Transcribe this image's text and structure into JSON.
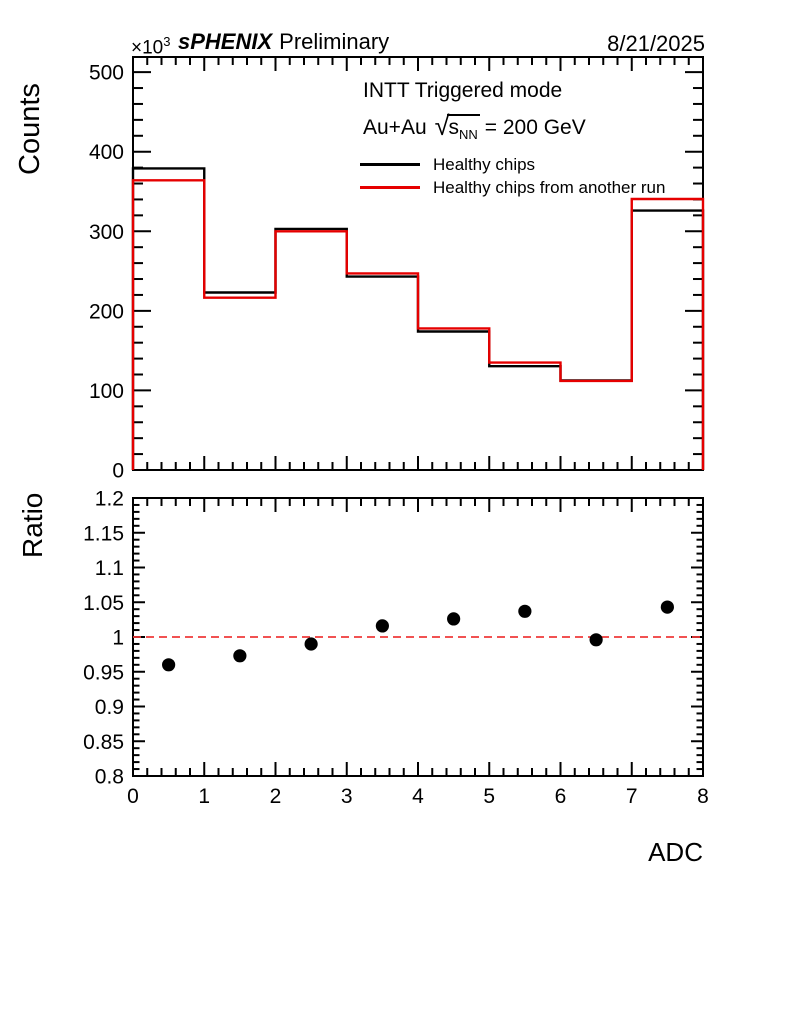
{
  "header": {
    "power_prefix": "×10",
    "power_exponent": "3",
    "experiment": "sPHENIX",
    "status": "Preliminary",
    "date": "8/21/2025"
  },
  "top_panel": {
    "legend": {
      "mode": "INTT Triggered mode",
      "collision": "Au+Au",
      "sqrt_symbol": "√",
      "s_symbol": "s",
      "s_subscript": "NN",
      "energy": "= 200 GeV",
      "entries": [
        {
          "label": "Healthy chips",
          "color": "#000000"
        },
        {
          "label": "Healthy chips from another run",
          "color": "#e60000"
        }
      ]
    }
  },
  "chart_data": [
    {
      "type": "line",
      "style": "step-histogram",
      "title": "",
      "xlabel": "ADC",
      "ylabel": "Counts",
      "units_factor": "×10³",
      "xlim": [
        0,
        8
      ],
      "ylim": [
        0,
        519
      ],
      "grid": false,
      "legend_position": "top-right-inside",
      "bin_edges": [
        0,
        1,
        2,
        3,
        4,
        5,
        6,
        7,
        8
      ],
      "y_ticks": [
        0,
        100,
        200,
        300,
        400,
        500
      ],
      "y_tick_labels": [
        "0",
        "100",
        "200",
        "300",
        "400",
        "500"
      ],
      "series": [
        {
          "name": "Healthy chips",
          "color": "#000000",
          "values": [
            379,
            223,
            303,
            243,
            174,
            130.5,
            112.5,
            326
          ]
        },
        {
          "name": "Healthy chips from another run",
          "color": "#e60000",
          "values": [
            364,
            216.5,
            300,
            247,
            178,
            135,
            112,
            340.5
          ]
        }
      ]
    },
    {
      "type": "scatter",
      "xlabel": "ADC",
      "ylabel": "Ratio",
      "xlim": [
        0,
        8
      ],
      "ylim": [
        0.8,
        1.2
      ],
      "grid": false,
      "x": [
        0.5,
        1.5,
        2.5,
        3.5,
        4.5,
        5.5,
        6.5,
        7.5
      ],
      "values": [
        0.96,
        0.973,
        0.99,
        1.016,
        1.026,
        1.037,
        0.996,
        1.043
      ],
      "marker": {
        "shape": "circle",
        "color": "#000000"
      },
      "y_ticks": [
        0.8,
        0.85,
        0.9,
        0.95,
        1,
        1.05,
        1.1,
        1.15,
        1.2
      ],
      "y_tick_labels": [
        "0.8",
        "0.85",
        "0.9",
        "0.95",
        "1",
        "1.05",
        "1.1",
        "1.15",
        "1.2"
      ],
      "x_ticks": [
        0,
        1,
        2,
        3,
        4,
        5,
        6,
        7,
        8
      ],
      "x_tick_labels": [
        "0",
        "1",
        "2",
        "3",
        "4",
        "5",
        "6",
        "7",
        "8"
      ],
      "reference_line": {
        "y": 1,
        "color": "#ef3a3a",
        "style": "dashed"
      }
    }
  ]
}
